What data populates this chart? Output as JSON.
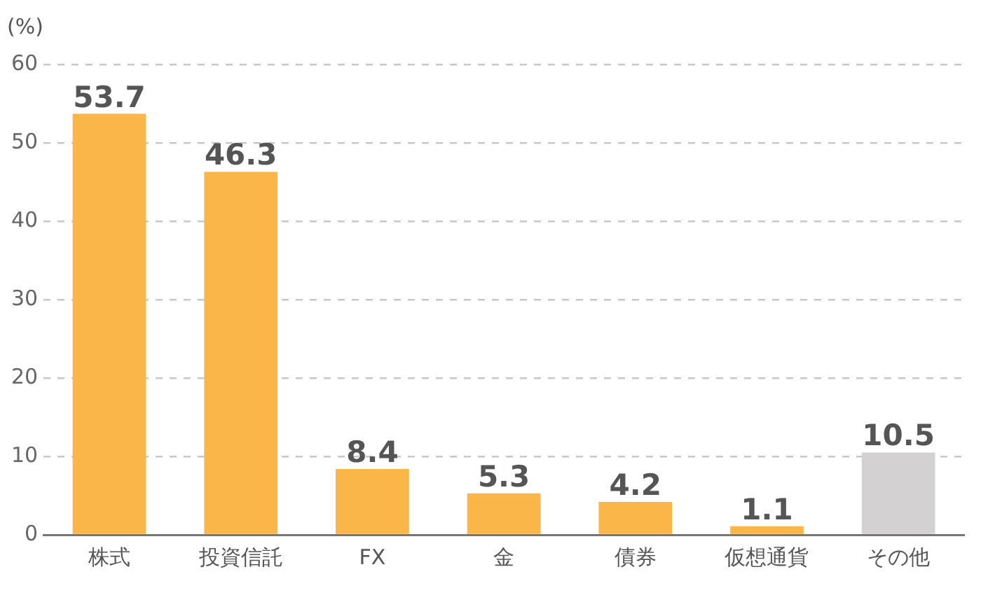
{
  "chart_data": {
    "type": "bar",
    "ylabel": "(%)",
    "categories": [
      "株式",
      "投資信託",
      "FX",
      "金",
      "債券",
      "仮想通貨",
      "その他"
    ],
    "values": [
      53.7,
      46.3,
      8.4,
      5.3,
      4.2,
      1.1,
      10.5
    ],
    "colors": [
      "#fbb64a",
      "#fbb64a",
      "#fbb64a",
      "#fbb64a",
      "#fbb64a",
      "#fbb64a",
      "#d3d1d2"
    ],
    "ylim": [
      0,
      60
    ],
    "yticks": [
      0,
      10,
      20,
      30,
      40,
      50,
      60
    ],
    "grid": "y",
    "data_labels": true
  }
}
